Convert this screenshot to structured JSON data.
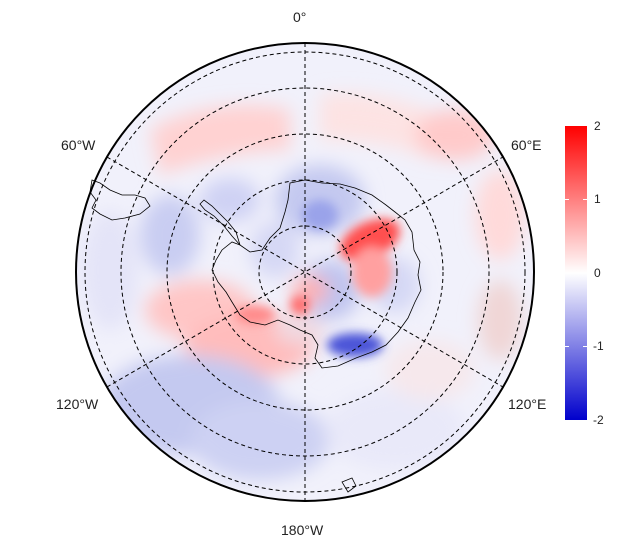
{
  "map": {
    "projection": "south-polar-stereographic",
    "longitude_labels": {
      "top": "0°",
      "upper_left": "60°W",
      "upper_right": "60°E",
      "lower_left": "120°W",
      "lower_right": "120°E",
      "bottom": "180°W"
    },
    "graticule": {
      "style": "dashed",
      "meridians_deg": [
        0,
        60,
        120,
        180,
        240,
        300
      ],
      "latitude_circles": 5
    },
    "coastlines": true
  },
  "colorbar": {
    "ticks": [
      "2",
      "1",
      "0",
      "-1",
      "-2"
    ],
    "range": [
      -2,
      2
    ],
    "colors": {
      "high": "#ff0000",
      "mid": "#ffffff",
      "low": "#0000cc"
    }
  }
}
